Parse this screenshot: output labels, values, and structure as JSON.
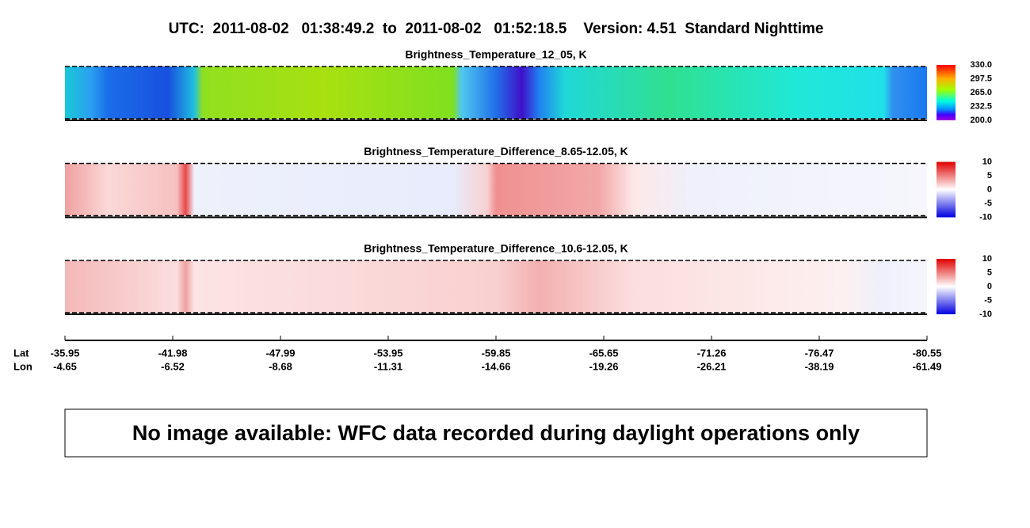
{
  "title": "UTC:  2011-08-02   01:38:49.2  to  2011-08-02   01:52:18.5    Version: 4.51  Standard Nighttime",
  "panels": [
    {
      "title": "Brightness_Temperature_12_05, K",
      "colorbar_ticks": [
        "330.0",
        "297.5",
        "265.0",
        "232.5",
        "200.0"
      ]
    },
    {
      "title": "Brightness_Temperature_Difference_8.65-12.05, K",
      "colorbar_ticks": [
        "10",
        "5",
        "0",
        "-5",
        "-10"
      ]
    },
    {
      "title": "Brightness_Temperature_Difference_10.6-12.05, K",
      "colorbar_ticks": [
        "10",
        "5",
        "0",
        "-5",
        "-10"
      ]
    }
  ],
  "axis": {
    "lat_label": "Lat",
    "lon_label": "Lon",
    "lat": [
      "-35.95",
      "-41.98",
      "-47.99",
      "-53.95",
      "-59.85",
      "-65.65",
      "-71.26",
      "-76.47",
      "-80.55"
    ],
    "lon": [
      "-4.65",
      "-6.52",
      "-8.68",
      "-11.31",
      "-14.66",
      "-19.26",
      "-26.21",
      "-38.19",
      "-61.49"
    ]
  },
  "notice": "No image available: WFC data recorded during daylight operations only"
}
